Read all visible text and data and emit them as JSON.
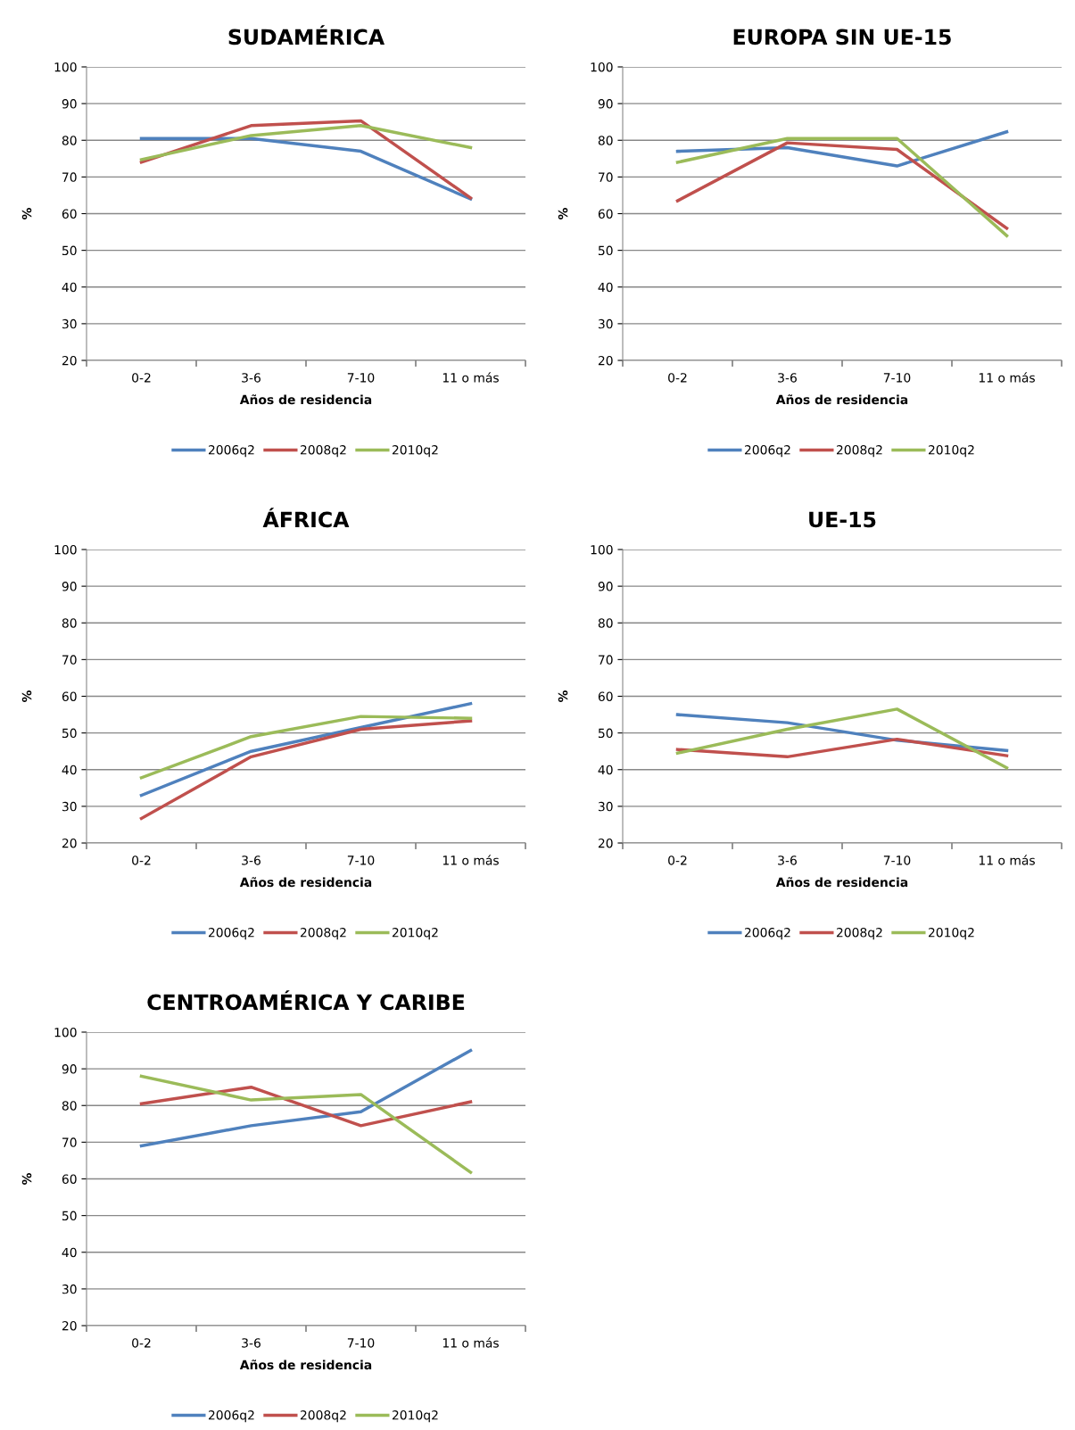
{
  "chart_data": [
    {
      "type": "line",
      "title": "SUDAMÉRICA",
      "xlabel": "Años de residencia",
      "ylabel": "%",
      "categories": [
        "0-2",
        "3-6",
        "7-10",
        "11 o más"
      ],
      "ylim": [
        20,
        100
      ],
      "yticks": [
        20,
        30,
        40,
        50,
        60,
        70,
        80,
        90,
        100
      ],
      "grid": "y",
      "legend": "bottom",
      "series": [
        {
          "name": "2006q2",
          "color": "#4f81bd",
          "values": [
            80.5,
            80.5,
            77,
            64
          ]
        },
        {
          "name": "2008q2",
          "color": "#c0504d",
          "values": [
            74,
            84,
            85.3,
            64.3
          ]
        },
        {
          "name": "2010q2",
          "color": "#9bbb59",
          "values": [
            74.7,
            81.3,
            84,
            78
          ]
        }
      ]
    },
    {
      "type": "line",
      "title": "EUROPA SIN UE-15",
      "xlabel": "Años de residencia",
      "ylabel": "%",
      "categories": [
        "0-2",
        "3-6",
        "7-10",
        "11 o más"
      ],
      "ylim": [
        20,
        100
      ],
      "yticks": [
        20,
        30,
        40,
        50,
        60,
        70,
        80,
        90,
        100
      ],
      "grid": "y",
      "legend": "bottom",
      "series": [
        {
          "name": "2006q2",
          "color": "#4f81bd",
          "values": [
            77,
            78,
            73,
            82.3
          ]
        },
        {
          "name": "2008q2",
          "color": "#c0504d",
          "values": [
            63.5,
            79.3,
            77.5,
            56
          ]
        },
        {
          "name": "2010q2",
          "color": "#9bbb59",
          "values": [
            74,
            80.5,
            80.5,
            54
          ]
        }
      ]
    },
    {
      "type": "line",
      "title": "ÁFRICA",
      "xlabel": "Años de residencia",
      "ylabel": "%",
      "categories": [
        "0-2",
        "3-6",
        "7-10",
        "11 o más"
      ],
      "ylim": [
        20,
        100
      ],
      "yticks": [
        20,
        30,
        40,
        50,
        60,
        70,
        80,
        90,
        100
      ],
      "grid": "y",
      "legend": "bottom",
      "series": [
        {
          "name": "2006q2",
          "color": "#4f81bd",
          "values": [
            33,
            45,
            51.5,
            58
          ]
        },
        {
          "name": "2008q2",
          "color": "#c0504d",
          "values": [
            26.7,
            43.5,
            51,
            53.3
          ]
        },
        {
          "name": "2010q2",
          "color": "#9bbb59",
          "values": [
            37.8,
            49,
            54.5,
            54
          ]
        }
      ]
    },
    {
      "type": "line",
      "title": "UE-15",
      "xlabel": "Años de residencia",
      "ylabel": "%",
      "categories": [
        "0-2",
        "3-6",
        "7-10",
        "11 o más"
      ],
      "ylim": [
        20,
        100
      ],
      "yticks": [
        20,
        30,
        40,
        50,
        60,
        70,
        80,
        90,
        100
      ],
      "grid": "y",
      "legend": "bottom",
      "series": [
        {
          "name": "2006q2",
          "color": "#4f81bd",
          "values": [
            55,
            52.8,
            48,
            45.2
          ]
        },
        {
          "name": "2008q2",
          "color": "#c0504d",
          "values": [
            45.5,
            43.5,
            48.3,
            43.8
          ]
        },
        {
          "name": "2010q2",
          "color": "#9bbb59",
          "values": [
            44.5,
            51,
            56.5,
            40.5
          ]
        }
      ]
    },
    {
      "type": "line",
      "title": "CENTROAMÉRICA Y CARIBE",
      "xlabel": "Años de residencia",
      "ylabel": "%",
      "categories": [
        "0-2",
        "3-6",
        "7-10",
        "11 o más"
      ],
      "ylim": [
        20,
        100
      ],
      "yticks": [
        20,
        30,
        40,
        50,
        60,
        70,
        80,
        90,
        100
      ],
      "grid": "y",
      "legend": "bottom",
      "series": [
        {
          "name": "2006q2",
          "color": "#4f81bd",
          "values": [
            69,
            74.5,
            78.3,
            95
          ]
        },
        {
          "name": "2008q2",
          "color": "#c0504d",
          "values": [
            80.5,
            85,
            74.5,
            81
          ]
        },
        {
          "name": "2010q2",
          "color": "#9bbb59",
          "values": [
            88,
            81.5,
            83,
            61.8
          ]
        }
      ]
    }
  ]
}
